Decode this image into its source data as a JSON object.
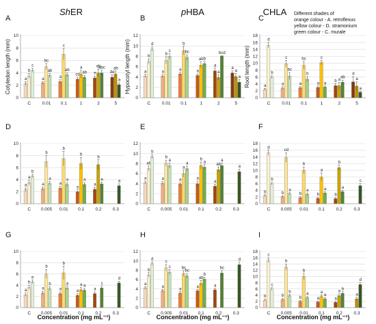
{
  "figure": {
    "column_titles": [
      {
        "prefix": "Sh",
        "rest": "ER"
      },
      {
        "prefix": "p",
        "rest": "HBA"
      },
      {
        "prefix": "",
        "rest": "CHLA"
      }
    ],
    "legend_lines": [
      "Different shades of",
      "orange colour - A. retroflexus",
      "yellow colour - D. stramonium",
      "green colour - C. murale"
    ],
    "xlabel": "Concentration (mg mL⁻¹)"
  },
  "chart_data": [
    {
      "panel": "A",
      "type": "bar",
      "ylabel": "Cotyledon length (mm)",
      "ylim": [
        0,
        10
      ],
      "ticks": [
        0,
        2,
        4,
        6,
        8,
        10
      ],
      "categories": [
        "C",
        "0.01",
        "0.1",
        "1",
        "2",
        "5"
      ],
      "series": [
        {
          "values": [
            2.3,
            2.4,
            2.6,
            3.0,
            3.2,
            3.3
          ],
          "err": [
            0.3,
            0.2,
            0.3,
            0.3,
            0.3,
            0.4
          ],
          "letters": [
            "a",
            "a",
            "a",
            "cd",
            "e",
            "de"
          ]
        },
        {
          "values": [
            3.5,
            5.0,
            7.0,
            3.8,
            4.0,
            3.8
          ],
          "err": [
            0.4,
            0.5,
            0.9,
            0.6,
            0.6,
            0.5
          ],
          "letters": [
            "b",
            "bc",
            "c",
            "a",
            "ab",
            "ab"
          ]
        },
        {
          "values": [
            4.4,
            3.6,
            3.7,
            3.3,
            4.0,
            2.1
          ],
          "err": [
            0.3,
            0.3,
            0.3,
            0.3,
            0.4,
            0.3
          ],
          "letters": [
            "c",
            "ab",
            "ab",
            "ab",
            "abc",
            "a"
          ]
        }
      ]
    },
    {
      "panel": "D",
      "type": "bar",
      "ylabel": "",
      "ylim": [
        0,
        10
      ],
      "ticks": [
        0,
        2,
        4,
        6,
        8,
        10
      ],
      "categories": [
        "C",
        "0.005",
        "0.01",
        "0.1",
        "0.2",
        "0.3"
      ],
      "series": [
        {
          "values": [
            2.3,
            2.5,
            2.6,
            2.0,
            2.4,
            0
          ],
          "err": [
            0.3,
            0.3,
            0.3,
            0.3,
            0.3,
            0
          ],
          "letters": [
            "a",
            "a",
            "a",
            "a",
            "a",
            ""
          ]
        },
        {
          "values": [
            3.5,
            7.0,
            7.5,
            6.7,
            6.5,
            0
          ],
          "err": [
            0.4,
            1.0,
            1.2,
            1.0,
            0.8,
            0
          ],
          "letters": [
            "a",
            "b",
            "b",
            "b",
            "b",
            ""
          ]
        },
        {
          "values": [
            4.6,
            3.4,
            3.2,
            3.2,
            3.3,
            3.0
          ],
          "err": [
            0.3,
            0.3,
            0.3,
            0.3,
            0.3,
            0.3
          ],
          "letters": [
            "b",
            "a",
            "a",
            "a",
            "a",
            "a"
          ]
        }
      ]
    },
    {
      "panel": "G",
      "type": "bar",
      "ylabel": "",
      "ylim": [
        0,
        10
      ],
      "ticks": [
        0,
        2,
        4,
        6,
        8,
        10
      ],
      "categories": [
        "C",
        "0.005",
        "0.01",
        "0.1",
        "0.2",
        "0.3"
      ],
      "series": [
        {
          "values": [
            2.3,
            2.6,
            2.5,
            2.2,
            2.5,
            0
          ],
          "err": [
            0.3,
            0.3,
            0.3,
            0.3,
            0.3,
            0
          ],
          "letters": [
            "a",
            "a",
            "a",
            "a",
            "a",
            ""
          ]
        },
        {
          "values": [
            3.6,
            6.0,
            6.2,
            3.2,
            0,
            0
          ],
          "err": [
            0.4,
            0.8,
            1.2,
            0.4,
            0,
            0
          ],
          "letters": [
            "b",
            "b",
            "b",
            "a",
            "",
            ""
          ]
        },
        {
          "values": [
            4.6,
            3.4,
            3.5,
            3.1,
            3.5,
            4.4
          ],
          "err": [
            0.3,
            0.3,
            0.3,
            0.3,
            0.3,
            0.3
          ],
          "letters": [
            "e",
            "b",
            "a",
            "a",
            "c",
            "d"
          ]
        }
      ]
    },
    {
      "panel": "B",
      "type": "bar",
      "ylabel": "Hypocotyl length (mm)",
      "ylim": [
        0,
        12
      ],
      "ticks": [
        0,
        2,
        4,
        6,
        8,
        10,
        12
      ],
      "categories": [
        "C",
        "0.01",
        "0.1",
        "1",
        "2",
        "5"
      ],
      "series": [
        {
          "values": [
            4.2,
            4.2,
            4.6,
            4.3,
            5.2,
            4.8
          ],
          "err": [
            0.3,
            0.3,
            0.3,
            0.3,
            0.5,
            0.4
          ],
          "letters": [
            "a",
            "a",
            "a",
            "a",
            "a",
            "a"
          ]
        },
        {
          "values": [
            7.0,
            7.2,
            9.1,
            6.3,
            3.9,
            4.1
          ],
          "err": [
            0.5,
            0.7,
            0.8,
            0.6,
            0.5,
            0.6
          ],
          "letters": [
            "b",
            "b",
            "b",
            "ab",
            "a",
            "a"
          ]
        },
        {
          "values": [
            9.4,
            8.0,
            7.8,
            6.6,
            8.1,
            3.0
          ],
          "err": [
            0.4,
            0.5,
            0.5,
            0.4,
            0.0,
            0.5
          ],
          "letters": [
            "d",
            "c",
            "bc",
            "b",
            "bcd",
            "a"
          ]
        }
      ]
    },
    {
      "panel": "E",
      "type": "bar",
      "ylabel": "",
      "ylim": [
        0,
        12
      ],
      "ticks": [
        0,
        2,
        4,
        6,
        8,
        10,
        12
      ],
      "categories": [
        "C",
        "0.005",
        "0.01",
        "0.1",
        "0.2",
        "0.3"
      ],
      "series": [
        {
          "values": [
            4.2,
            4.1,
            3.9,
            4.0,
            3.5,
            0
          ],
          "err": [
            0.3,
            0.3,
            0.3,
            0.5,
            0.4,
            0
          ],
          "letters": [
            "a",
            "a",
            "a",
            "a",
            "a",
            ""
          ]
        },
        {
          "values": [
            7.0,
            8.1,
            6.0,
            7.6,
            6.8,
            0
          ],
          "err": [
            0.5,
            0.6,
            0.7,
            0.7,
            0.5,
            0
          ],
          "letters": [
            "ab",
            "b",
            "a",
            "b",
            "ab",
            ""
          ]
        },
        {
          "values": [
            9.4,
            7.6,
            7.0,
            7.3,
            7.6,
            6.4
          ],
          "err": [
            0.4,
            0.5,
            0.5,
            0.5,
            0.5,
            0.5
          ],
          "letters": [
            "b",
            "a",
            "a",
            "a",
            "a",
            "a"
          ]
        }
      ]
    },
    {
      "panel": "H",
      "type": "bar",
      "ylabel": "",
      "ylim": [
        0,
        12
      ],
      "ticks": [
        0,
        2,
        4,
        6,
        8,
        10,
        12
      ],
      "categories": [
        "C",
        "0.005",
        "0.01",
        "0.1",
        "0.2",
        "0.3"
      ],
      "series": [
        {
          "values": [
            4.2,
            3.6,
            3.1,
            3.6,
            3.8,
            0
          ],
          "err": [
            0.3,
            0.3,
            0.3,
            0.3,
            0.3,
            0
          ],
          "letters": [
            "a",
            "a",
            "a",
            "a",
            "a",
            ""
          ]
        },
        {
          "values": [
            7.0,
            8.5,
            7.3,
            5.2,
            0,
            0
          ],
          "err": [
            0.5,
            0.7,
            0.6,
            0.6,
            0,
            0
          ],
          "letters": [
            "b",
            "c",
            "bc",
            "ab",
            "",
            ""
          ]
        },
        {
          "values": [
            9.4,
            7.6,
            6.8,
            6.1,
            7.4,
            9.2
          ],
          "err": [
            0.4,
            0.5,
            0.5,
            0.4,
            0.5,
            0.5
          ],
          "letters": [
            "d",
            "c",
            "bc",
            "b",
            "bc",
            "d"
          ]
        }
      ]
    },
    {
      "panel": "C",
      "type": "bar",
      "ylabel": "Root length (mm)",
      "ylim": [
        0,
        18
      ],
      "ticks": [
        0,
        2,
        4,
        6,
        8,
        10,
        12,
        14,
        16,
        18
      ],
      "categories": [
        "C",
        "0.01",
        "0.1",
        "1",
        "2",
        "5"
      ],
      "series": [
        {
          "values": [
            2.4,
            2.8,
            2.9,
            3.0,
            3.5,
            4.6
          ],
          "err": [
            0.3,
            0.4,
            0.4,
            0.4,
            0.6,
            1.5
          ],
          "letters": [
            "a",
            "a",
            "a",
            "a",
            "b",
            "d"
          ]
        },
        {
          "values": [
            15.2,
            9.8,
            9.4,
            10.2,
            3.5,
            3.4
          ],
          "err": [
            0.8,
            1.0,
            1.1,
            0.6,
            1.0,
            1.2
          ],
          "letters": [
            "d",
            "c",
            "bc",
            "c",
            "a",
            "a"
          ]
        },
        {
          "values": [
            6.0,
            6.3,
            5.4,
            3.1,
            4.5,
            1.6
          ],
          "err": [
            0.4,
            1.0,
            0.7,
            0.3,
            0.6,
            0.3
          ],
          "letters": [
            "b",
            "bc",
            "b",
            "a",
            "ab",
            "a"
          ]
        }
      ]
    },
    {
      "panel": "F",
      "type": "bar",
      "ylabel": "",
      "ylim": [
        0,
        18
      ],
      "ticks": [
        0,
        2,
        4,
        6,
        8,
        10,
        12,
        14,
        16,
        18
      ],
      "categories": [
        "C",
        "0.005",
        "0.01",
        "0.1",
        "0.2",
        "0.3"
      ],
      "series": [
        {
          "values": [
            2.4,
            2.1,
            1.8,
            1.6,
            1.5,
            0
          ],
          "err": [
            0.3,
            0.3,
            0.3,
            0.3,
            0.3,
            0
          ],
          "letters": [
            "b",
            "b",
            "b",
            "b",
            "b",
            ""
          ]
        },
        {
          "values": [
            15.2,
            13.8,
            10.0,
            8.0,
            10.8,
            0
          ],
          "err": [
            0.8,
            1.4,
            1.0,
            1.2,
            0.8,
            0
          ],
          "letters": [
            "d",
            "cd",
            "b",
            "a",
            "b",
            ""
          ]
        },
        {
          "values": [
            6.0,
            3.0,
            2.8,
            3.2,
            3.6,
            5.4
          ],
          "err": [
            0.4,
            0.3,
            0.4,
            0.4,
            0.4,
            0.6
          ],
          "letters": [
            "b",
            "a",
            "a",
            "a",
            "a",
            "c"
          ]
        }
      ]
    },
    {
      "panel": "I",
      "type": "bar",
      "ylabel": "",
      "ylim": [
        0,
        18
      ],
      "ticks": [
        0,
        2,
        4,
        6,
        8,
        10,
        12,
        14,
        16,
        18
      ],
      "categories": [
        "C",
        "0.005",
        "0.01",
        "0.1",
        "0.2",
        "0.3"
      ],
      "series": [
        {
          "values": [
            2.4,
            2.6,
            2.0,
            1.8,
            1.7,
            0
          ],
          "err": [
            0.3,
            0.4,
            0.3,
            0.3,
            0.3,
            0
          ],
          "letters": [
            "b",
            "b",
            "b",
            "a",
            "a",
            ""
          ]
        },
        {
          "values": [
            15.2,
            13.0,
            10.0,
            3.6,
            3.8,
            2.8
          ],
          "err": [
            0.8,
            1.0,
            1.0,
            0.5,
            0.6,
            0.5
          ],
          "letters": [
            "c",
            "b",
            "b",
            "a",
            "a",
            "a"
          ]
        },
        {
          "values": [
            6.0,
            3.8,
            3.2,
            2.8,
            4.6,
            7.4
          ],
          "err": [
            0.4,
            0.4,
            0.4,
            0.4,
            0.5,
            0.6
          ],
          "letters": [
            "c",
            "b",
            "a",
            "a",
            "b",
            "d"
          ]
        }
      ]
    }
  ],
  "colors": {
    "orange": [
      "#f7d9bf",
      "#f2ae80",
      "#ed7d31",
      "#c55a11",
      "#a0470c",
      "#843c0c"
    ],
    "yellow": [
      "#fff2cc",
      "#ffe699",
      "#ffd966",
      "#ffc000",
      "#c8a300",
      "#bf9000"
    ],
    "green": [
      "#e2efda",
      "#c6e0b4",
      "#a9d18e",
      "#70ad47",
      "#548235",
      "#385723"
    ],
    "axis": "#999999",
    "grid": "#d9d9d9",
    "bar_edge": "#7f7f7f"
  }
}
